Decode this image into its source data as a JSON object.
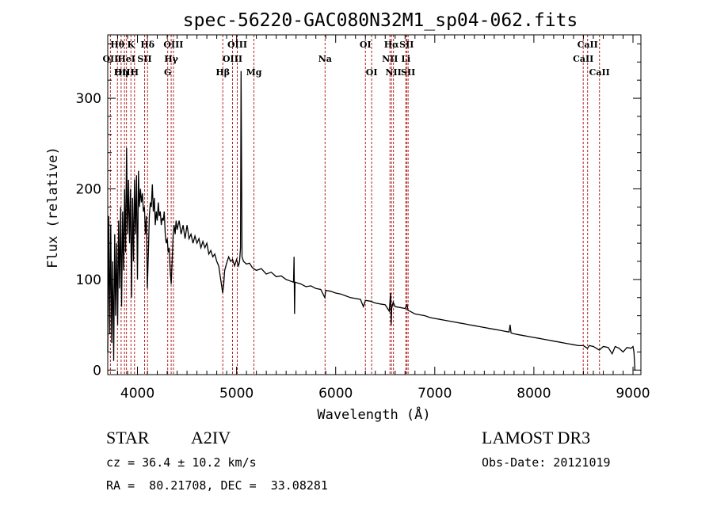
{
  "chart_data": {
    "type": "line",
    "title": "spec-56220-GAC080N32M1_sp04-062.fits",
    "xlabel": "Wavelength (Å)",
    "ylabel": "Flux (relative)",
    "xlim": [
      3700,
      9080
    ],
    "ylim": [
      -5,
      370
    ],
    "xticks": [
      4000,
      5000,
      6000,
      7000,
      8000,
      9000
    ],
    "xtick_labels": [
      "4000",
      "5000",
      "6000",
      "7000",
      "8000",
      "9000"
    ],
    "yticks": [
      0,
      100,
      200,
      300
    ],
    "ytick_labels": [
      "0",
      "100",
      "200",
      "300"
    ],
    "grid": false,
    "series": [
      {
        "name": "spectrum",
        "color": "#000000",
        "points": [
          [
            3700,
            20
          ],
          [
            3710,
            170
          ],
          [
            3720,
            40
          ],
          [
            3730,
            160
          ],
          [
            3740,
            30
          ],
          [
            3750,
            120
          ],
          [
            3760,
            10
          ],
          [
            3770,
            150
          ],
          [
            3780,
            60
          ],
          [
            3790,
            140
          ],
          [
            3800,
            50
          ],
          [
            3810,
            165
          ],
          [
            3820,
            90
          ],
          [
            3830,
            180
          ],
          [
            3840,
            70
          ],
          [
            3850,
            175
          ],
          [
            3860,
            110
          ],
          [
            3870,
            200
          ],
          [
            3880,
            130
          ],
          [
            3890,
            245
          ],
          [
            3900,
            150
          ],
          [
            3910,
            210
          ],
          [
            3920,
            140
          ],
          [
            3930,
            200
          ],
          [
            3940,
            80
          ],
          [
            3950,
            190
          ],
          [
            3960,
            120
          ],
          [
            3970,
            210
          ],
          [
            3980,
            150
          ],
          [
            3990,
            215
          ],
          [
            4000,
            100
          ],
          [
            4010,
            220
          ],
          [
            4020,
            180
          ],
          [
            4030,
            200
          ],
          [
            4040,
            185
          ],
          [
            4050,
            195
          ],
          [
            4060,
            175
          ],
          [
            4070,
            180
          ],
          [
            4080,
            150
          ],
          [
            4090,
            170
          ],
          [
            4100,
            90
          ],
          [
            4110,
            130
          ],
          [
            4120,
            170
          ],
          [
            4130,
            185
          ],
          [
            4140,
            180
          ],
          [
            4150,
            205
          ],
          [
            4160,
            175
          ],
          [
            4170,
            190
          ],
          [
            4180,
            160
          ],
          [
            4190,
            175
          ],
          [
            4200,
            165
          ],
          [
            4210,
            185
          ],
          [
            4220,
            170
          ],
          [
            4230,
            175
          ],
          [
            4240,
            160
          ],
          [
            4250,
            168
          ],
          [
            4260,
            165
          ],
          [
            4270,
            175
          ],
          [
            4280,
            150
          ],
          [
            4290,
            140
          ],
          [
            4300,
            145
          ],
          [
            4310,
            130
          ],
          [
            4320,
            135
          ],
          [
            4330,
            110
          ],
          [
            4340,
            95
          ],
          [
            4350,
            120
          ],
          [
            4360,
            150
          ],
          [
            4370,
            160
          ],
          [
            4380,
            150
          ],
          [
            4390,
            165
          ],
          [
            4400,
            155
          ],
          [
            4420,
            165
          ],
          [
            4440,
            150
          ],
          [
            4460,
            160
          ],
          [
            4480,
            145
          ],
          [
            4500,
            160
          ],
          [
            4520,
            145
          ],
          [
            4540,
            150
          ],
          [
            4560,
            140
          ],
          [
            4580,
            148
          ],
          [
            4600,
            140
          ],
          [
            4620,
            145
          ],
          [
            4640,
            135
          ],
          [
            4660,
            142
          ],
          [
            4680,
            135
          ],
          [
            4700,
            140
          ],
          [
            4720,
            128
          ],
          [
            4740,
            132
          ],
          [
            4760,
            125
          ],
          [
            4780,
            128
          ],
          [
            4800,
            120
          ],
          [
            4820,
            115
          ],
          [
            4840,
            100
          ],
          [
            4860,
            85
          ],
          [
            4870,
            95
          ],
          [
            4880,
            110
          ],
          [
            4900,
            118
          ],
          [
            4920,
            125
          ],
          [
            4940,
            120
          ],
          [
            4960,
            122
          ],
          [
            4980,
            115
          ],
          [
            5000,
            122
          ],
          [
            5010,
            118
          ],
          [
            5020,
            115
          ],
          [
            5030,
            120
          ],
          [
            5040,
            135
          ],
          [
            5045,
            330
          ],
          [
            5055,
            125
          ],
          [
            5070,
            120
          ],
          [
            5100,
            117
          ],
          [
            5130,
            118
          ],
          [
            5160,
            113
          ],
          [
            5200,
            110
          ],
          [
            5250,
            112
          ],
          [
            5300,
            106
          ],
          [
            5350,
            108
          ],
          [
            5400,
            103
          ],
          [
            5450,
            104
          ],
          [
            5500,
            100
          ],
          [
            5550,
            98
          ],
          [
            5575,
            97
          ],
          [
            5580,
            125
          ],
          [
            5585,
            62
          ],
          [
            5590,
            97
          ],
          [
            5650,
            95
          ],
          [
            5700,
            92
          ],
          [
            5750,
            93
          ],
          [
            5800,
            90
          ],
          [
            5850,
            89
          ],
          [
            5890,
            80
          ],
          [
            5900,
            88
          ],
          [
            5950,
            87
          ],
          [
            6000,
            85
          ],
          [
            6050,
            84
          ],
          [
            6100,
            82
          ],
          [
            6150,
            80
          ],
          [
            6200,
            79
          ],
          [
            6250,
            78
          ],
          [
            6280,
            70
          ],
          [
            6300,
            77
          ],
          [
            6350,
            76
          ],
          [
            6400,
            74
          ],
          [
            6450,
            73
          ],
          [
            6500,
            72
          ],
          [
            6540,
            65
          ],
          [
            6555,
            85
          ],
          [
            6560,
            50
          ],
          [
            6565,
            68
          ],
          [
            6580,
            75
          ],
          [
            6600,
            70
          ],
          [
            6650,
            69
          ],
          [
            6700,
            68
          ],
          [
            6720,
            72
          ],
          [
            6730,
            66
          ],
          [
            6750,
            65
          ],
          [
            6800,
            62
          ],
          [
            6850,
            61
          ],
          [
            6900,
            60
          ],
          [
            6950,
            58
          ],
          [
            7000,
            57
          ],
          [
            7050,
            56
          ],
          [
            7100,
            55
          ],
          [
            7150,
            54
          ],
          [
            7200,
            53
          ],
          [
            7250,
            52
          ],
          [
            7300,
            51
          ],
          [
            7350,
            50
          ],
          [
            7400,
            49
          ],
          [
            7450,
            48
          ],
          [
            7500,
            47
          ],
          [
            7550,
            46
          ],
          [
            7600,
            45
          ],
          [
            7650,
            44
          ],
          [
            7700,
            43
          ],
          [
            7750,
            42
          ],
          [
            7760,
            50
          ],
          [
            7770,
            41
          ],
          [
            7800,
            40
          ],
          [
            7850,
            39
          ],
          [
            7900,
            38
          ],
          [
            7950,
            37
          ],
          [
            8000,
            36
          ],
          [
            8050,
            35
          ],
          [
            8100,
            34
          ],
          [
            8150,
            33
          ],
          [
            8200,
            32
          ],
          [
            8250,
            31
          ],
          [
            8300,
            30
          ],
          [
            8350,
            29
          ],
          [
            8400,
            28
          ],
          [
            8450,
            27
          ],
          [
            8500,
            27
          ],
          [
            8540,
            24
          ],
          [
            8560,
            27
          ],
          [
            8600,
            26
          ],
          [
            8660,
            22
          ],
          [
            8700,
            26
          ],
          [
            8750,
            25
          ],
          [
            8790,
            18
          ],
          [
            8820,
            26
          ],
          [
            8860,
            24
          ],
          [
            8900,
            20
          ],
          [
            8940,
            25
          ],
          [
            8980,
            24
          ],
          [
            9000,
            26
          ],
          [
            9010,
            20
          ],
          [
            9020,
            0
          ]
        ]
      }
    ],
    "spectral_lines": [
      {
        "label": "Hθ",
        "wavelength": 3798,
        "row": 0
      },
      {
        "label": "K",
        "wavelength": 3934,
        "row": 0
      },
      {
        "label": "Hδ",
        "wavelength": 4102,
        "row": 0
      },
      {
        "label": "OIII",
        "wavelength": 4363,
        "row": 0
      },
      {
        "label": "OIII",
        "wavelength": 5007,
        "row": 0
      },
      {
        "label": "OI",
        "wavelength": 6300,
        "row": 0
      },
      {
        "label": "Hα",
        "wavelength": 6563,
        "row": 0
      },
      {
        "label": "SII",
        "wavelength": 6716,
        "row": 0
      },
      {
        "label": "CaII",
        "wavelength": 8542,
        "row": 0
      },
      {
        "label": "OII",
        "wavelength": 3727,
        "row": 1
      },
      {
        "label": "HeI",
        "wavelength": 3889,
        "row": 1
      },
      {
        "label": "SII",
        "wavelength": 4072,
        "row": 1
      },
      {
        "label": "Hγ",
        "wavelength": 4340,
        "row": 1
      },
      {
        "label": "OIII",
        "wavelength": 4959,
        "row": 1
      },
      {
        "label": "NII",
        "wavelength": 6548,
        "row": 1
      },
      {
        "label": "Li",
        "wavelength": 6708,
        "row": 1
      },
      {
        "label": "CaII",
        "wavelength": 8498,
        "row": 1
      },
      {
        "label": "OIII",
        "wavelength": 3869,
        "row": 2
      },
      {
        "label": "Hη",
        "wavelength": 3835,
        "row": 2
      },
      {
        "label": "H",
        "wavelength": 3970,
        "row": 2
      },
      {
        "label": "G",
        "wavelength": 4305,
        "row": 2
      },
      {
        "label": "Hβ",
        "wavelength": 4861,
        "row": 2
      },
      {
        "label": "Mg",
        "wavelength": 5175,
        "row": 2
      },
      {
        "label": "Na",
        "wavelength": 5893,
        "row": 1
      },
      {
        "label": "OI",
        "wavelength": 6363,
        "row": 2
      },
      {
        "label": "NII",
        "wavelength": 6583,
        "row": 2
      },
      {
        "label": "SII",
        "wavelength": 6731,
        "row": 2
      },
      {
        "label": "CaII",
        "wavelength": 8662,
        "row": 2
      }
    ],
    "line_marker_color": "#b22222"
  },
  "info": {
    "object_class": "STAR",
    "subclass": "A2IV",
    "survey": "LAMOST DR3",
    "redshift_text": "cz = 36.4 ± 10.2 km/s",
    "obs_date_text": "Obs-Date: 20121019",
    "coords_text": "RA =  80.21708, DEC =  33.08281"
  }
}
